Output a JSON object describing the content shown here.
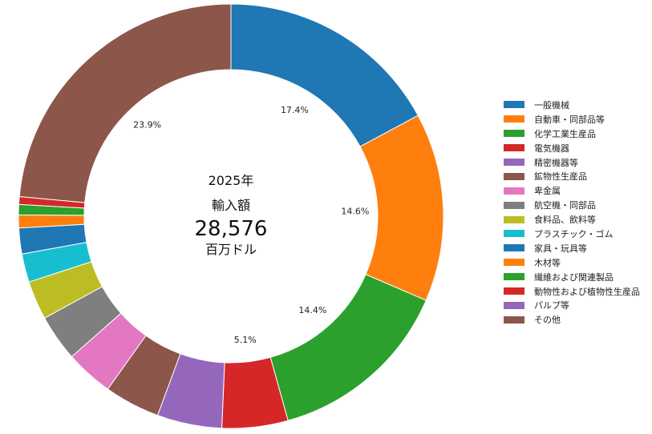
{
  "center": {
    "year": "2025年",
    "label": "輸入額",
    "value": "28,576",
    "unit": "百万ドル"
  },
  "chart_data": {
    "type": "pie",
    "categories": [
      "一般機械",
      "自動車・同部品等",
      "化学工業生産品",
      "電気機器",
      "精密機器等",
      "鉱物性生産品",
      "卑金属",
      "航空機・同部品",
      "食料品、飲料等",
      "プラスチック・ゴム",
      "家具・玩具等",
      "木材等",
      "繊維および関連製品",
      "動物性および植物性生産品",
      "パルプ等",
      "その他"
    ],
    "values": [
      17.4,
      14.6,
      14.4,
      5.1,
      5.0,
      4.3,
      3.7,
      3.6,
      3.0,
      2.2,
      2.0,
      1.0,
      0.8,
      0.6,
      0.0,
      23.9
    ],
    "value_labels": [
      "17.4%",
      "14.6%",
      "14.4%",
      "5.1%",
      "",
      "",
      "",
      "",
      "",
      "",
      "",
      "",
      "",
      "",
      "",
      "23.9%"
    ],
    "colors": [
      "#1f77b4",
      "#ff7f0e",
      "#2ca02c",
      "#d62728",
      "#9467bd",
      "#8c564b",
      "#e377c2",
      "#7f7f7f",
      "#bcbd22",
      "#17becf",
      "#1f77b4",
      "#ff7f0e",
      "#2ca02c",
      "#d62728",
      "#9467bd",
      "#8c564b"
    ],
    "legend_position": "right",
    "style": "donut"
  }
}
